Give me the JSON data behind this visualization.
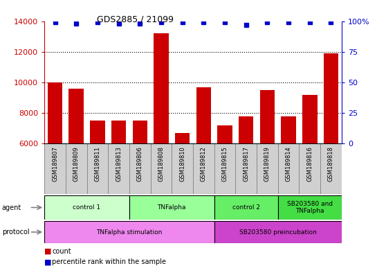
{
  "title": "GDS2885 / 21099",
  "samples": [
    "GSM189807",
    "GSM189809",
    "GSM189811",
    "GSM189813",
    "GSM189806",
    "GSM189808",
    "GSM189810",
    "GSM189812",
    "GSM189815",
    "GSM189817",
    "GSM189819",
    "GSM189814",
    "GSM189816",
    "GSM189818"
  ],
  "counts": [
    10000,
    9600,
    7500,
    7500,
    7500,
    13200,
    6700,
    9700,
    7200,
    7800,
    9500,
    7800,
    9200,
    11900
  ],
  "percentile_ranks": [
    99,
    98,
    99,
    98,
    98,
    99,
    99,
    99,
    99,
    97,
    99,
    99,
    99,
    99
  ],
  "ylim_left": [
    6000,
    14000
  ],
  "ylim_right": [
    0,
    100
  ],
  "yticks_left": [
    6000,
    8000,
    10000,
    12000,
    14000
  ],
  "yticks_right": [
    0,
    25,
    50,
    75,
    100
  ],
  "bar_color": "#cc0000",
  "dot_color": "#0000cc",
  "agent_groups": [
    {
      "label": "control 1",
      "start": 0,
      "end": 4,
      "color": "#ccffcc"
    },
    {
      "label": "TNFalpha",
      "start": 4,
      "end": 8,
      "color": "#99ff99"
    },
    {
      "label": "control 2",
      "start": 8,
      "end": 11,
      "color": "#66ee66"
    },
    {
      "label": "SB203580 and\nTNFalpha",
      "start": 11,
      "end": 14,
      "color": "#44dd44"
    }
  ],
  "protocol_groups": [
    {
      "label": "TNFalpha stimulation",
      "start": 0,
      "end": 8,
      "color": "#ee88ee"
    },
    {
      "label": "SB203580 preincubation",
      "start": 8,
      "end": 14,
      "color": "#cc44cc"
    }
  ],
  "grid_yticks": [
    8000,
    10000,
    12000
  ],
  "background_color": "#ffffff",
  "bar_width": 0.7,
  "cell_bg_color": "#d0d0d0",
  "cell_border_color": "#888888"
}
